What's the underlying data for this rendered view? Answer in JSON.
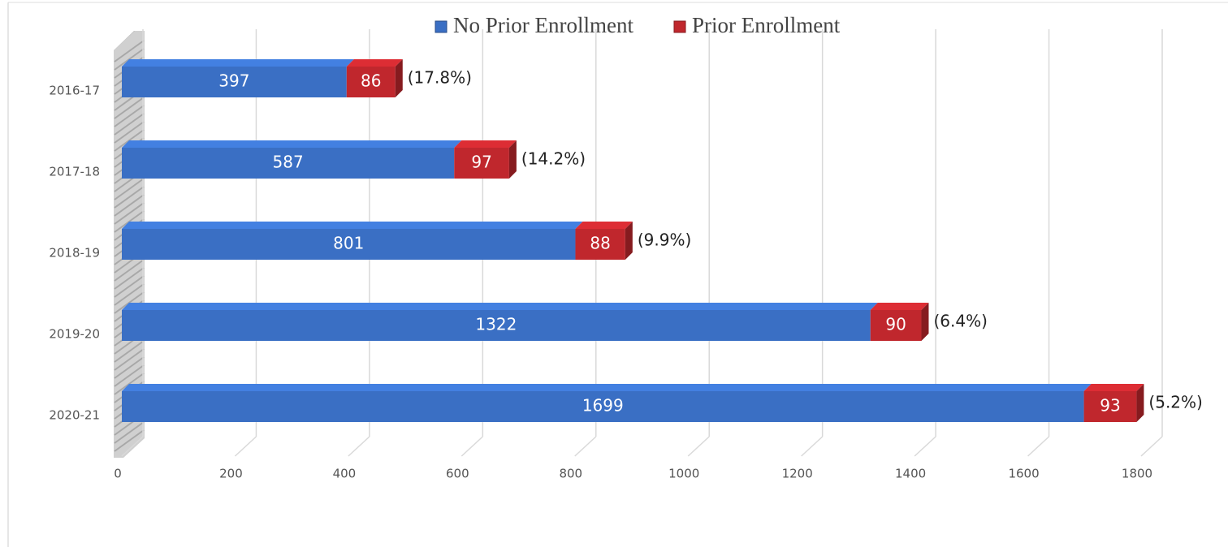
{
  "chart_data": {
    "type": "bar",
    "orientation": "horizontal",
    "stacked": true,
    "categories": [
      "2016-17",
      "2017-18",
      "2018-19",
      "2019-20",
      "2020-21"
    ],
    "series": [
      {
        "name": "No Prior Enrollment",
        "color": "#3a6fc4",
        "values": [
          397,
          587,
          801,
          1322,
          1699
        ]
      },
      {
        "name": "Prior Enrollment",
        "color": "#c0272d",
        "values": [
          86,
          97,
          88,
          90,
          93
        ]
      }
    ],
    "annotations": [
      "(17.8%)",
      "(14.2%)",
      "(9.9%)",
      "(6.4%)",
      "(5.2%)"
    ],
    "xlim": [
      0,
      1800
    ],
    "xticks": [
      0,
      200,
      400,
      600,
      800,
      1000,
      1200,
      1400,
      1600,
      1800
    ],
    "grid": true,
    "legend": "top"
  }
}
